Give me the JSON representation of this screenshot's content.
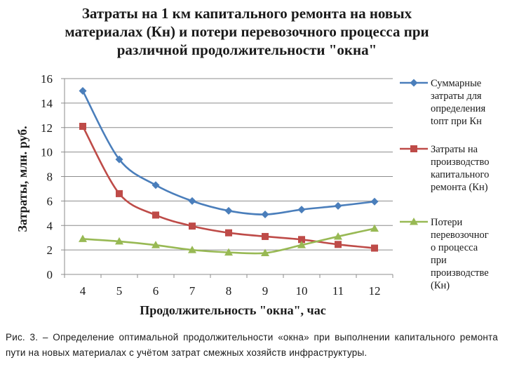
{
  "chart_data": {
    "type": "line",
    "title_lines": [
      "Затраты на 1 км капитального ремонта на новых",
      "материалах (Кн) и потери перевозочного процесса при",
      "различной продолжительности \"окна\""
    ],
    "xlabel": "Продолжительность \"окна\", час",
    "ylabel": "Затраты, млн. руб.",
    "x": [
      4,
      5,
      6,
      7,
      8,
      9,
      10,
      11,
      12
    ],
    "ylim": [
      0,
      16
    ],
    "yticks": [
      0,
      2,
      4,
      6,
      8,
      10,
      12,
      14,
      16
    ],
    "grid": true,
    "legend_position": "right",
    "series": [
      {
        "name_lines": [
          "Суммарные",
          "затраты для",
          "определения",
          "tопт при Кн"
        ],
        "values": [
          15.0,
          9.4,
          7.3,
          6.0,
          5.2,
          4.9,
          5.3,
          5.6,
          5.95
        ],
        "color": "#4a7ebb",
        "marker": "diamond"
      },
      {
        "name_lines": [
          "Затраты на",
          "производство",
          "капитального",
          "ремонта (Кн)"
        ],
        "values": [
          12.1,
          6.6,
          4.85,
          3.95,
          3.4,
          3.1,
          2.85,
          2.45,
          2.15
        ],
        "color": "#be4b48",
        "marker": "square"
      },
      {
        "name_lines": [
          "Потери",
          "перевозочног",
          "о процесса",
          "при",
          "производстве",
          "(Кн)"
        ],
        "values": [
          2.9,
          2.7,
          2.4,
          2.0,
          1.8,
          1.75,
          2.4,
          3.1,
          3.75
        ],
        "color": "#98b954",
        "marker": "triangle"
      }
    ]
  },
  "caption": "Рис. 3. – Определение оптимальной продолжительности «окна» при выполнении капитального ремонта пути на новых материалах с учётом затрат смежных хозяйств инфраструктуры."
}
